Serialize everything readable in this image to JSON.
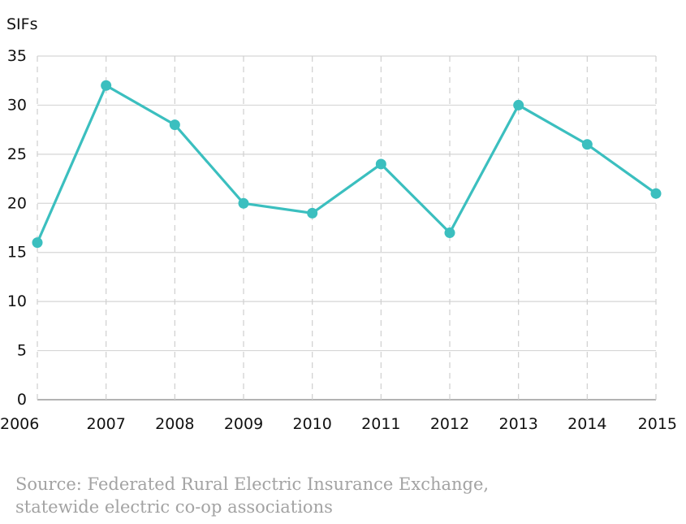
{
  "chart_data": {
    "type": "line",
    "ylabel": "SIFs",
    "x": [
      "2006",
      "2007",
      "2008",
      "2009",
      "2010",
      "2011",
      "2012",
      "2013",
      "2014",
      "2015"
    ],
    "series": [
      {
        "values": [
          16,
          32,
          28,
          20,
          19,
          24,
          17,
          30,
          26,
          21
        ]
      }
    ],
    "ylim": [
      0,
      35
    ],
    "yticks": [
      0,
      5,
      10,
      15,
      20,
      25,
      30,
      35
    ],
    "grid": true,
    "color": "#3bbfbf"
  },
  "source": {
    "line1": "Source: Federated Rural Electric Insurance Exchange,",
    "line2": "statewide electric co-op associations"
  }
}
